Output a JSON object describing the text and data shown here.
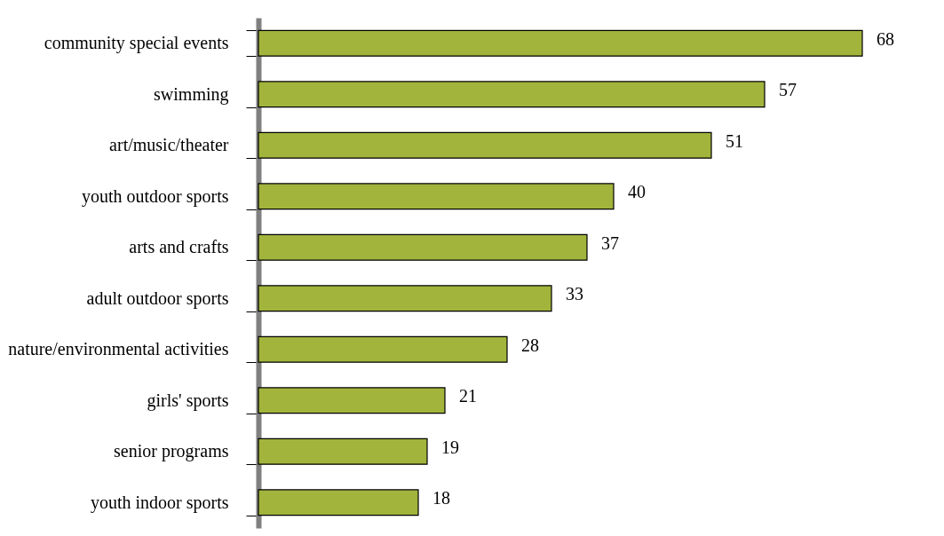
{
  "chart_data": {
    "type": "bar",
    "orientation": "horizontal",
    "categories": [
      "community special events",
      "swimming",
      "art/music/theater",
      "youth outdoor sports",
      "arts and crafts",
      "adult outdoor sports",
      "nature/environmental activities",
      "girls' sports",
      "senior programs",
      "youth indoor sports"
    ],
    "values": [
      68,
      57,
      51,
      40,
      37,
      33,
      28,
      21,
      19,
      18
    ],
    "color": "#a2b43c",
    "data_labels": true
  }
}
